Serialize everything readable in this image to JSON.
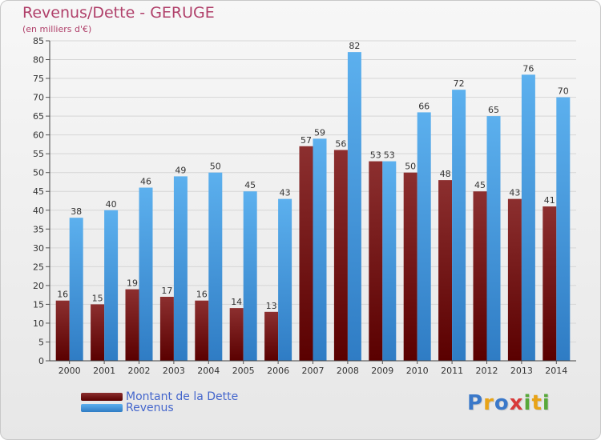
{
  "chart_data": {
    "type": "bar",
    "title": "Revenus/Dette - GERUGE",
    "subtitle": "(en milliers d'€)",
    "xlabel": "",
    "ylabel": "",
    "ylim": [
      0,
      85
    ],
    "yticks": [
      0,
      5,
      10,
      15,
      20,
      25,
      30,
      35,
      40,
      45,
      50,
      55,
      60,
      65,
      70,
      75,
      80,
      85
    ],
    "grid": true,
    "categories": [
      "2000",
      "2001",
      "2002",
      "2003",
      "2004",
      "2005",
      "2006",
      "2007",
      "2008",
      "2009",
      "2010",
      "2011",
      "2012",
      "2013",
      "2014"
    ],
    "series": [
      {
        "name": "Montant de la Dette",
        "color": "#7a1f1f",
        "values": [
          16,
          15,
          19,
          17,
          16,
          14,
          13,
          57,
          56,
          53,
          50,
          48,
          45,
          43,
          41
        ]
      },
      {
        "name": "Revenus",
        "color": "#4ea3e3",
        "values": [
          38,
          40,
          46,
          49,
          50,
          45,
          43,
          59,
          82,
          53,
          66,
          72,
          65,
          76,
          70
        ]
      }
    ],
    "legend_position": "bottom-left"
  },
  "logo": {
    "letters": [
      "P",
      "r",
      "o",
      "x",
      "i",
      "t",
      "i"
    ],
    "colors": [
      "#3a78c9",
      "#e8a317",
      "#3a78c9",
      "#d83a3a",
      "#58a83a",
      "#e8a317",
      "#58a83a"
    ]
  }
}
